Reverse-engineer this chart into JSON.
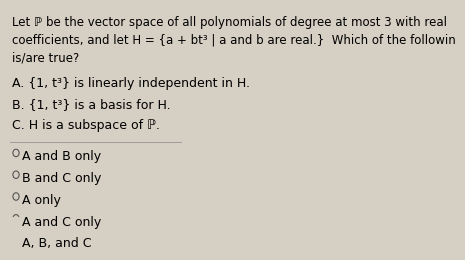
{
  "bg_color": "#d6cfc4",
  "text_color": "#000000",
  "title_lines": [
    "Let ℙ be the vector space of all polynomials of degree at most 3 with real",
    "coefficients, and let H = {a + bt³ | a and b are real.}  Which of the followin",
    "is/are true?"
  ],
  "statements": [
    "A. {1, t³} is linearly independent in H.",
    "B. {1, t³} is a basis for H.",
    "C. H is a subspace of ℙ."
  ],
  "choices": [
    "A and B only",
    "B and C only",
    "A only",
    "A and C only",
    "A, B, and C"
  ],
  "font_size_title": 8.5,
  "font_size_statements": 9.0,
  "font_size_choices": 9.0
}
